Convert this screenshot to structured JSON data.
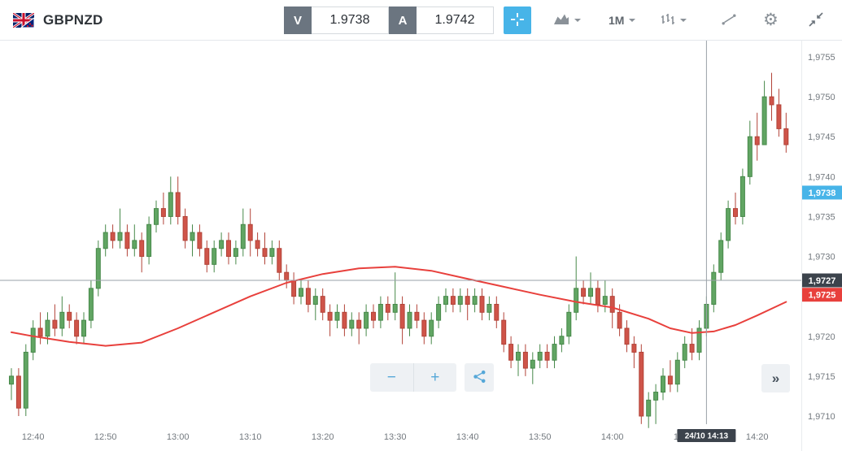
{
  "header": {
    "symbol": "GBPNZD",
    "sell": {
      "label": "V",
      "price": "1.9738"
    },
    "buy": {
      "label": "A",
      "price": "1.9742"
    },
    "timeframe": "1M"
  },
  "icons": {
    "gear": "⚙"
  },
  "controls": {
    "zoom_out": "−",
    "zoom_in": "+",
    "expand": "»"
  },
  "colors": {
    "accent_blue": "#47b4e8",
    "up_fill": "#61a563",
    "up_stroke": "#47894a",
    "down_fill": "#cf5449",
    "down_stroke": "#b24338",
    "ma": "#e8403c",
    "badge_dark": "#3c434c",
    "badge_blue": "#47b4e8",
    "badge_red": "#e8403c",
    "crosshair": "#9aa1a8"
  },
  "chart_data": {
    "type": "candlestick",
    "symbol": "GBPNZD",
    "interval": "1m",
    "y_range": {
      "min": 1.9706,
      "max": 1.9757
    },
    "axis": {
      "y_ticks": [
        {
          "label": "1,9755",
          "value": 1.9755
        },
        {
          "label": "1,9750",
          "value": 1.975
        },
        {
          "label": "1,9745",
          "value": 1.9745
        },
        {
          "label": "1,9740",
          "value": 1.974
        },
        {
          "label": "1,9735",
          "value": 1.9735
        },
        {
          "label": "1,9730",
          "value": 1.973
        },
        {
          "label": "1,9725",
          "value": 1.9725
        },
        {
          "label": "1,9720",
          "value": 1.972
        },
        {
          "label": "1,9715",
          "value": 1.9715
        },
        {
          "label": "1,9710",
          "value": 1.971
        }
      ],
      "x_ticks": [
        {
          "label": "12:40",
          "time": "12:40"
        },
        {
          "label": "12:50",
          "time": "12:50"
        },
        {
          "label": "13:00",
          "time": "13:00"
        },
        {
          "label": "13:10",
          "time": "13:10"
        },
        {
          "label": "13:20",
          "time": "13:20"
        },
        {
          "label": "13:30",
          "time": "13:30"
        },
        {
          "label": "13:40",
          "time": "13:40"
        },
        {
          "label": "13:50",
          "time": "13:50"
        },
        {
          "label": "14:00",
          "time": "14:00"
        },
        {
          "label": "14:10",
          "time": "14:10"
        },
        {
          "label": "14:20",
          "time": "14:20"
        }
      ]
    },
    "crosshair": {
      "time": "14:13",
      "price": 1.9727,
      "date_label": "24/10 14:13"
    },
    "price_badges": [
      {
        "label": "1,9738",
        "value": 1.9738,
        "type": "ask-price",
        "color_key": "badge_blue"
      },
      {
        "label": "1,9725",
        "value": 1.97252,
        "type": "ma-value",
        "color_key": "badge_red"
      },
      {
        "label": "1,9727",
        "value": 1.9727,
        "type": "crosshair-price",
        "color_key": "badge_dark"
      }
    ],
    "candles": [
      [
        "12:37",
        1.9714,
        1.9716,
        1.9712,
        1.9715
      ],
      [
        "12:38",
        1.9715,
        1.9716,
        1.971,
        1.9711
      ],
      [
        "12:39",
        1.9711,
        1.9719,
        1.971,
        1.9718
      ],
      [
        "12:40",
        1.9718,
        1.9722,
        1.9717,
        1.9721
      ],
      [
        "12:41",
        1.9721,
        1.9723,
        1.9719,
        1.972
      ],
      [
        "12:42",
        1.972,
        1.9723,
        1.9719,
        1.9722
      ],
      [
        "12:43",
        1.9722,
        1.9724,
        1.972,
        1.9721
      ],
      [
        "12:44",
        1.9721,
        1.9725,
        1.972,
        1.9723
      ],
      [
        "12:45",
        1.9723,
        1.9724,
        1.9721,
        1.9722
      ],
      [
        "12:46",
        1.9722,
        1.9723,
        1.9719,
        1.972
      ],
      [
        "12:47",
        1.972,
        1.9723,
        1.9719,
        1.9722
      ],
      [
        "12:48",
        1.9722,
        1.9727,
        1.9721,
        1.9726
      ],
      [
        "12:49",
        1.9726,
        1.9732,
        1.9725,
        1.9731
      ],
      [
        "12:50",
        1.9731,
        1.9734,
        1.973,
        1.9733
      ],
      [
        "12:51",
        1.9733,
        1.9734,
        1.9731,
        1.9732
      ],
      [
        "12:52",
        1.9732,
        1.9736,
        1.9731,
        1.9733
      ],
      [
        "12:53",
        1.9733,
        1.9734,
        1.973,
        1.9731
      ],
      [
        "12:54",
        1.9731,
        1.9734,
        1.973,
        1.9732
      ],
      [
        "12:55",
        1.9732,
        1.9733,
        1.9728,
        1.973
      ],
      [
        "12:56",
        1.973,
        1.9735,
        1.9729,
        1.9734
      ],
      [
        "12:57",
        1.9734,
        1.9737,
        1.9733,
        1.9736
      ],
      [
        "12:58",
        1.9736,
        1.9738,
        1.9734,
        1.9735
      ],
      [
        "12:59",
        1.9735,
        1.974,
        1.9734,
        1.9738
      ],
      [
        "13:00",
        1.9738,
        1.974,
        1.9734,
        1.9735
      ],
      [
        "13:01",
        1.9735,
        1.9736,
        1.9731,
        1.9732
      ],
      [
        "13:02",
        1.9732,
        1.9734,
        1.973,
        1.9733
      ],
      [
        "13:03",
        1.9733,
        1.9734,
        1.973,
        1.9731
      ],
      [
        "13:04",
        1.9731,
        1.9732,
        1.9728,
        1.9729
      ],
      [
        "13:05",
        1.9729,
        1.9732,
        1.9728,
        1.9731
      ],
      [
        "13:06",
        1.9731,
        1.9733,
        1.973,
        1.9732
      ],
      [
        "13:07",
        1.9732,
        1.9733,
        1.9729,
        1.973
      ],
      [
        "13:08",
        1.973,
        1.9732,
        1.9729,
        1.9731
      ],
      [
        "13:09",
        1.9731,
        1.9736,
        1.973,
        1.9734
      ],
      [
        "13:10",
        1.9734,
        1.9736,
        1.973,
        1.9732
      ],
      [
        "13:11",
        1.9732,
        1.9733,
        1.973,
        1.9731
      ],
      [
        "13:12",
        1.9731,
        1.9733,
        1.9729,
        1.973
      ],
      [
        "13:13",
        1.973,
        1.9732,
        1.9729,
        1.9731
      ],
      [
        "13:14",
        1.9731,
        1.9732,
        1.9727,
        1.9728
      ],
      [
        "13:15",
        1.9728,
        1.9729,
        1.9726,
        1.9727
      ],
      [
        "13:16",
        1.9727,
        1.9728,
        1.9724,
        1.9725
      ],
      [
        "13:17",
        1.9725,
        1.9727,
        1.9724,
        1.9726
      ],
      [
        "13:18",
        1.9726,
        1.9727,
        1.9723,
        1.9724
      ],
      [
        "13:19",
        1.9724,
        1.9726,
        1.9722,
        1.9725
      ],
      [
        "13:20",
        1.9725,
        1.9726,
        1.9722,
        1.9723
      ],
      [
        "13:21",
        1.9723,
        1.9724,
        1.972,
        1.9722
      ],
      [
        "13:22",
        1.9722,
        1.9724,
        1.9721,
        1.9723
      ],
      [
        "13:23",
        1.9723,
        1.9724,
        1.972,
        1.9721
      ],
      [
        "13:24",
        1.9721,
        1.9723,
        1.972,
        1.9722
      ],
      [
        "13:25",
        1.9722,
        1.9723,
        1.9719,
        1.9721
      ],
      [
        "13:26",
        1.9721,
        1.9724,
        1.972,
        1.9723
      ],
      [
        "13:27",
        1.9723,
        1.9724,
        1.9721,
        1.9722
      ],
      [
        "13:28",
        1.9722,
        1.9725,
        1.9721,
        1.9724
      ],
      [
        "13:29",
        1.9724,
        1.9725,
        1.9722,
        1.9723
      ],
      [
        "13:30",
        1.9723,
        1.9728,
        1.9722,
        1.9724
      ],
      [
        "13:31",
        1.9724,
        1.9725,
        1.9719,
        1.9721
      ],
      [
        "13:32",
        1.9721,
        1.9724,
        1.972,
        1.9723
      ],
      [
        "13:33",
        1.9723,
        1.9724,
        1.9721,
        1.9722
      ],
      [
        "13:34",
        1.9722,
        1.9723,
        1.9719,
        1.972
      ],
      [
        "13:35",
        1.972,
        1.9723,
        1.9719,
        1.9722
      ],
      [
        "13:36",
        1.9722,
        1.9725,
        1.9721,
        1.9724
      ],
      [
        "13:37",
        1.9724,
        1.9726,
        1.9723,
        1.9725
      ],
      [
        "13:38",
        1.9725,
        1.9726,
        1.9723,
        1.9724
      ],
      [
        "13:39",
        1.9724,
        1.9726,
        1.9723,
        1.9725
      ],
      [
        "13:40",
        1.9725,
        1.9726,
        1.9722,
        1.9724
      ],
      [
        "13:41",
        1.9724,
        1.9726,
        1.9723,
        1.9725
      ],
      [
        "13:42",
        1.9725,
        1.9726,
        1.9722,
        1.9723
      ],
      [
        "13:43",
        1.9723,
        1.9725,
        1.9722,
        1.9724
      ],
      [
        "13:44",
        1.9724,
        1.9725,
        1.9721,
        1.9722
      ],
      [
        "13:45",
        1.9722,
        1.9723,
        1.9718,
        1.9719
      ],
      [
        "13:46",
        1.9719,
        1.972,
        1.9716,
        1.9717
      ],
      [
        "13:47",
        1.9717,
        1.9719,
        1.9715,
        1.9718
      ],
      [
        "13:48",
        1.9718,
        1.9719,
        1.9715,
        1.9716
      ],
      [
        "13:49",
        1.9716,
        1.9718,
        1.9714,
        1.9717
      ],
      [
        "13:50",
        1.9717,
        1.9719,
        1.9716,
        1.9718
      ],
      [
        "13:51",
        1.9718,
        1.9719,
        1.9716,
        1.9717
      ],
      [
        "13:52",
        1.9717,
        1.972,
        1.9716,
        1.9719
      ],
      [
        "13:53",
        1.9719,
        1.9721,
        1.9718,
        1.972
      ],
      [
        "13:54",
        1.972,
        1.9724,
        1.9719,
        1.9723
      ],
      [
        "13:55",
        1.9723,
        1.973,
        1.9722,
        1.9726
      ],
      [
        "13:56",
        1.9726,
        1.9727,
        1.9724,
        1.9725
      ],
      [
        "13:57",
        1.9725,
        1.9728,
        1.9724,
        1.9726
      ],
      [
        "13:58",
        1.9726,
        1.9727,
        1.9723,
        1.9724
      ],
      [
        "13:59",
        1.9724,
        1.9727,
        1.9723,
        1.9725
      ],
      [
        "14:00",
        1.9725,
        1.9726,
        1.9721,
        1.9723
      ],
      [
        "14:01",
        1.9723,
        1.9724,
        1.972,
        1.9721
      ],
      [
        "14:02",
        1.9721,
        1.9722,
        1.9718,
        1.9719
      ],
      [
        "14:03",
        1.9719,
        1.972,
        1.9716,
        1.9718
      ],
      [
        "14:04",
        1.9718,
        1.9719,
        1.9709,
        1.971
      ],
      [
        "14:05",
        1.971,
        1.9713,
        1.97085,
        1.9712
      ],
      [
        "14:06",
        1.9712,
        1.9714,
        1.9709,
        1.9713
      ],
      [
        "14:07",
        1.9713,
        1.9716,
        1.9712,
        1.9715
      ],
      [
        "14:08",
        1.9715,
        1.9717,
        1.9713,
        1.9714
      ],
      [
        "14:09",
        1.9714,
        1.9718,
        1.9713,
        1.9717
      ],
      [
        "14:10",
        1.9717,
        1.972,
        1.9716,
        1.9719
      ],
      [
        "14:11",
        1.9719,
        1.9721,
        1.9717,
        1.9718
      ],
      [
        "14:12",
        1.9718,
        1.9722,
        1.9717,
        1.9721
      ],
      [
        "14:13",
        1.9721,
        1.9725,
        1.972,
        1.9724
      ],
      [
        "14:14",
        1.9724,
        1.9729,
        1.9723,
        1.9728
      ],
      [
        "14:15",
        1.9728,
        1.9733,
        1.9727,
        1.9732
      ],
      [
        "14:16",
        1.9732,
        1.9737,
        1.9731,
        1.9736
      ],
      [
        "14:17",
        1.9736,
        1.9738,
        1.9734,
        1.9735
      ],
      [
        "14:18",
        1.9735,
        1.9741,
        1.9734,
        1.974
      ],
      [
        "14:19",
        1.974,
        1.9747,
        1.9739,
        1.9745
      ],
      [
        "14:20",
        1.9745,
        1.9748,
        1.9742,
        1.9744
      ],
      [
        "14:21",
        1.9744,
        1.9752,
        1.9744,
        1.975
      ],
      [
        "14:22",
        1.975,
        1.9753,
        1.9747,
        1.9749
      ],
      [
        "14:23",
        1.9749,
        1.9751,
        1.9745,
        1.9746
      ],
      [
        "14:24",
        1.9746,
        1.9748,
        1.9743,
        1.9744
      ]
    ],
    "ma": [
      [
        "12:37",
        1.97205
      ],
      [
        "12:40",
        1.972
      ],
      [
        "12:45",
        1.97193
      ],
      [
        "12:50",
        1.97188
      ],
      [
        "12:55",
        1.97192
      ],
      [
        "13:00",
        1.9721
      ],
      [
        "13:05",
        1.9723
      ],
      [
        "13:10",
        1.9725
      ],
      [
        "13:15",
        1.97267
      ],
      [
        "13:20",
        1.97278
      ],
      [
        "13:25",
        1.97285
      ],
      [
        "13:30",
        1.97287
      ],
      [
        "13:35",
        1.97282
      ],
      [
        "13:40",
        1.97272
      ],
      [
        "13:45",
        1.97262
      ],
      [
        "13:50",
        1.97252
      ],
      [
        "13:55",
        1.97243
      ],
      [
        "14:00",
        1.97236
      ],
      [
        "14:05",
        1.97222
      ],
      [
        "14:08",
        1.9721
      ],
      [
        "14:11",
        1.97204
      ],
      [
        "14:14",
        1.97206
      ],
      [
        "14:17",
        1.97214
      ],
      [
        "14:20",
        1.97226
      ],
      [
        "14:24",
        1.97243
      ]
    ]
  }
}
